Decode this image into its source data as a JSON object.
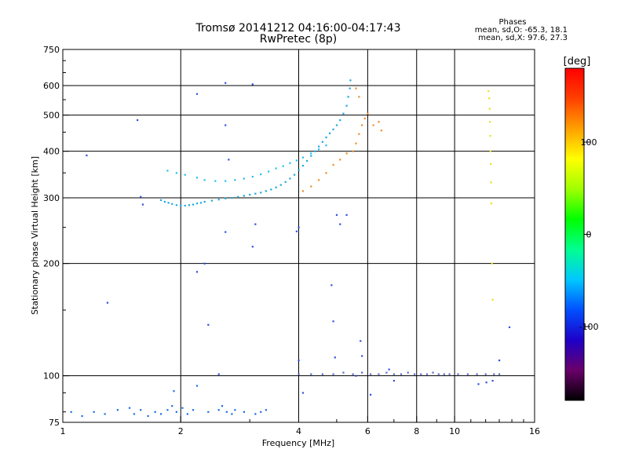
{
  "chart_data": {
    "type": "scatter",
    "title": "Tromsø 20141212 04:16:00-04:17:43",
    "subtitle": "RwPretec (8p)",
    "xlabel": "Frequency [MHz]",
    "ylabel": "Stationary phase Virtual Height [km]",
    "x_scale": "log",
    "y_scale": "log",
    "xlim": [
      1,
      16
    ],
    "ylim": [
      75,
      750
    ],
    "x_ticks": [
      1,
      2,
      4,
      6,
      8,
      10,
      16
    ],
    "x_tick_labels": [
      "1",
      "2",
      "4",
      "6",
      "8",
      "10",
      "16"
    ],
    "y_ticks": [
      75,
      100,
      200,
      300,
      400,
      500,
      600,
      750
    ],
    "y_tick_labels": [
      "75",
      "100",
      "200",
      "300",
      "400",
      "500",
      "600",
      "750"
    ],
    "grid": true,
    "stats": {
      "heading": "Phases",
      "line1": "mean, sd,O: -65.3, 18.1",
      "line2": "mean, sd,X:  97.6, 27.3"
    },
    "colorbar": {
      "label": "[deg]",
      "ticks": [
        -100,
        0,
        100
      ],
      "tick_labels": [
        "-100",
        "0",
        "100"
      ],
      "range": [
        -180,
        180
      ],
      "colors": [
        "#000000",
        "#6a006a",
        "#1e00c8",
        "#0050ff",
        "#00c8ff",
        "#00ff90",
        "#00ff00",
        "#a0ff00",
        "#ffff00",
        "#ffa000",
        "#ff4000",
        "#ff0000"
      ]
    },
    "series": [
      {
        "role": "O-mode lower trace",
        "color": "#1ca8e0",
        "points": [
          [
            1.78,
            296
          ],
          [
            1.82,
            293
          ],
          [
            1.86,
            291
          ],
          [
            1.9,
            289
          ],
          [
            1.95,
            287
          ],
          [
            2.0,
            286
          ],
          [
            2.05,
            286
          ],
          [
            2.1,
            287
          ],
          [
            2.15,
            288
          ],
          [
            2.2,
            290
          ],
          [
            2.25,
            291
          ],
          [
            2.3,
            293
          ],
          [
            2.4,
            295
          ],
          [
            2.5,
            297
          ],
          [
            2.6,
            299
          ],
          [
            2.7,
            300
          ],
          [
            2.8,
            302
          ],
          [
            2.9,
            304
          ],
          [
            3.0,
            306
          ],
          [
            3.1,
            308
          ],
          [
            3.2,
            310
          ],
          [
            3.3,
            313
          ],
          [
            3.4,
            316
          ],
          [
            3.5,
            320
          ],
          [
            3.6,
            325
          ],
          [
            3.7,
            331
          ],
          [
            3.8,
            338
          ],
          [
            3.9,
            346
          ],
          [
            4.0,
            356
          ],
          [
            4.1,
            366
          ],
          [
            4.2,
            377
          ],
          [
            4.3,
            389
          ],
          [
            4.4,
            400
          ],
          [
            4.5,
            412
          ],
          [
            4.6,
            424
          ],
          [
            4.7,
            436
          ],
          [
            4.8,
            447
          ],
          [
            4.9,
            458
          ],
          [
            5.0,
            470
          ],
          [
            5.1,
            485
          ],
          [
            5.2,
            505
          ],
          [
            5.3,
            530
          ],
          [
            5.35,
            560
          ],
          [
            5.4,
            590
          ],
          [
            5.42,
            620
          ]
        ]
      },
      {
        "role": "O-mode upper trace",
        "color": "#22c0f0",
        "points": [
          [
            1.85,
            355
          ],
          [
            1.95,
            350
          ],
          [
            2.05,
            346
          ],
          [
            2.2,
            340
          ],
          [
            2.3,
            335
          ],
          [
            2.45,
            333
          ],
          [
            2.6,
            333
          ],
          [
            2.75,
            335
          ],
          [
            2.9,
            338
          ],
          [
            3.05,
            342
          ],
          [
            3.2,
            347
          ],
          [
            3.35,
            353
          ],
          [
            3.5,
            360
          ],
          [
            3.65,
            365
          ],
          [
            3.8,
            372
          ],
          [
            3.95,
            378
          ],
          [
            4.1,
            385
          ],
          [
            4.3,
            395
          ],
          [
            4.5,
            405
          ],
          [
            4.7,
            415
          ]
        ]
      },
      {
        "role": "low-height cluster",
        "color": "#1e6ee6",
        "points": [
          [
            1.05,
            80
          ],
          [
            1.12,
            78
          ],
          [
            1.2,
            80
          ],
          [
            1.28,
            79
          ],
          [
            1.38,
            81
          ],
          [
            1.48,
            82
          ],
          [
            1.52,
            79
          ],
          [
            1.58,
            81
          ],
          [
            1.65,
            78
          ],
          [
            1.72,
            80
          ],
          [
            1.78,
            79
          ],
          [
            1.85,
            81
          ],
          [
            1.9,
            83
          ],
          [
            1.95,
            80
          ],
          [
            2.02,
            82
          ],
          [
            2.08,
            79
          ],
          [
            2.15,
            81
          ],
          [
            2.35,
            80
          ],
          [
            2.5,
            81
          ],
          [
            2.55,
            83
          ],
          [
            2.62,
            80
          ],
          [
            2.7,
            79
          ],
          [
            2.75,
            81
          ],
          [
            2.9,
            80
          ],
          [
            3.1,
            79
          ],
          [
            3.2,
            80
          ],
          [
            3.3,
            81
          ],
          [
            1.92,
            91
          ],
          [
            2.2,
            94
          ]
        ]
      },
      {
        "role": "100 km E-layer trace",
        "color": "#5a6ad0",
        "points": [
          [
            4.0,
            101
          ],
          [
            4.3,
            101
          ],
          [
            4.6,
            101
          ],
          [
            4.9,
            101
          ],
          [
            5.2,
            102
          ],
          [
            5.5,
            101
          ],
          [
            5.8,
            102
          ],
          [
            6.1,
            101
          ],
          [
            6.4,
            101
          ],
          [
            6.7,
            102
          ],
          [
            7.0,
            101
          ],
          [
            7.3,
            101
          ],
          [
            7.6,
            102
          ],
          [
            7.9,
            101
          ],
          [
            8.2,
            101
          ],
          [
            8.5,
            101
          ],
          [
            8.8,
            102
          ],
          [
            9.1,
            101
          ],
          [
            9.4,
            101
          ],
          [
            9.7,
            101
          ],
          [
            10.2,
            101
          ],
          [
            10.8,
            101
          ],
          [
            11.4,
            101
          ],
          [
            12.0,
            101
          ],
          [
            12.6,
            101
          ],
          [
            13.0,
            101
          ]
        ]
      },
      {
        "role": "X-mode trace",
        "color": "#f08c28",
        "points": [
          [
            4.1,
            313
          ],
          [
            4.3,
            322
          ],
          [
            4.5,
            335
          ],
          [
            4.7,
            350
          ],
          [
            4.9,
            368
          ],
          [
            5.1,
            380
          ],
          [
            5.3,
            395
          ],
          [
            5.5,
            400
          ],
          [
            5.6,
            420
          ],
          [
            5.7,
            445
          ],
          [
            5.8,
            470
          ],
          [
            5.9,
            490
          ],
          [
            6.0,
            505
          ],
          [
            6.2,
            470
          ],
          [
            6.4,
            480
          ],
          [
            6.5,
            455
          ],
          [
            5.7,
            560
          ],
          [
            5.6,
            590
          ]
        ]
      },
      {
        "role": "high-frequency column",
        "color": "#e8e020",
        "points": [
          [
            12.2,
            580
          ],
          [
            12.25,
            555
          ],
          [
            12.28,
            520
          ],
          [
            12.3,
            480
          ],
          [
            12.32,
            440
          ],
          [
            12.34,
            400
          ],
          [
            12.36,
            370
          ],
          [
            12.38,
            330
          ],
          [
            12.4,
            290
          ],
          [
            12.45,
            200
          ],
          [
            12.5,
            160
          ]
        ]
      },
      {
        "role": "scattered points",
        "color": "#3050e0",
        "points": [
          [
            1.15,
            390
          ],
          [
            1.3,
            157
          ],
          [
            1.55,
            485
          ],
          [
            1.58,
            302
          ],
          [
            1.6,
            288
          ],
          [
            2.2,
            570
          ],
          [
            2.3,
            200
          ],
          [
            2.35,
            137
          ],
          [
            2.2,
            190
          ],
          [
            2.6,
            610
          ],
          [
            2.6,
            470
          ],
          [
            2.65,
            380
          ],
          [
            2.6,
            243
          ],
          [
            3.05,
            605
          ],
          [
            3.05,
            222
          ],
          [
            3.1,
            255
          ],
          [
            3.95,
            244
          ],
          [
            4.0,
            250
          ],
          [
            4.0,
            110
          ],
          [
            4.1,
            90
          ],
          [
            4.85,
            175
          ],
          [
            4.9,
            140
          ],
          [
            4.95,
            112
          ],
          [
            5.0,
            270
          ],
          [
            5.1,
            255
          ],
          [
            5.3,
            270
          ],
          [
            5.6,
            100
          ],
          [
            5.8,
            113
          ],
          [
            5.75,
            124
          ],
          [
            6.8,
            104
          ],
          [
            6.1,
            89
          ],
          [
            7.0,
            97
          ],
          [
            11.5,
            95
          ],
          [
            12.05,
            96
          ],
          [
            12.5,
            97
          ],
          [
            13.0,
            110
          ],
          [
            13.8,
            135
          ],
          [
            2.5,
            101
          ]
        ]
      }
    ]
  }
}
